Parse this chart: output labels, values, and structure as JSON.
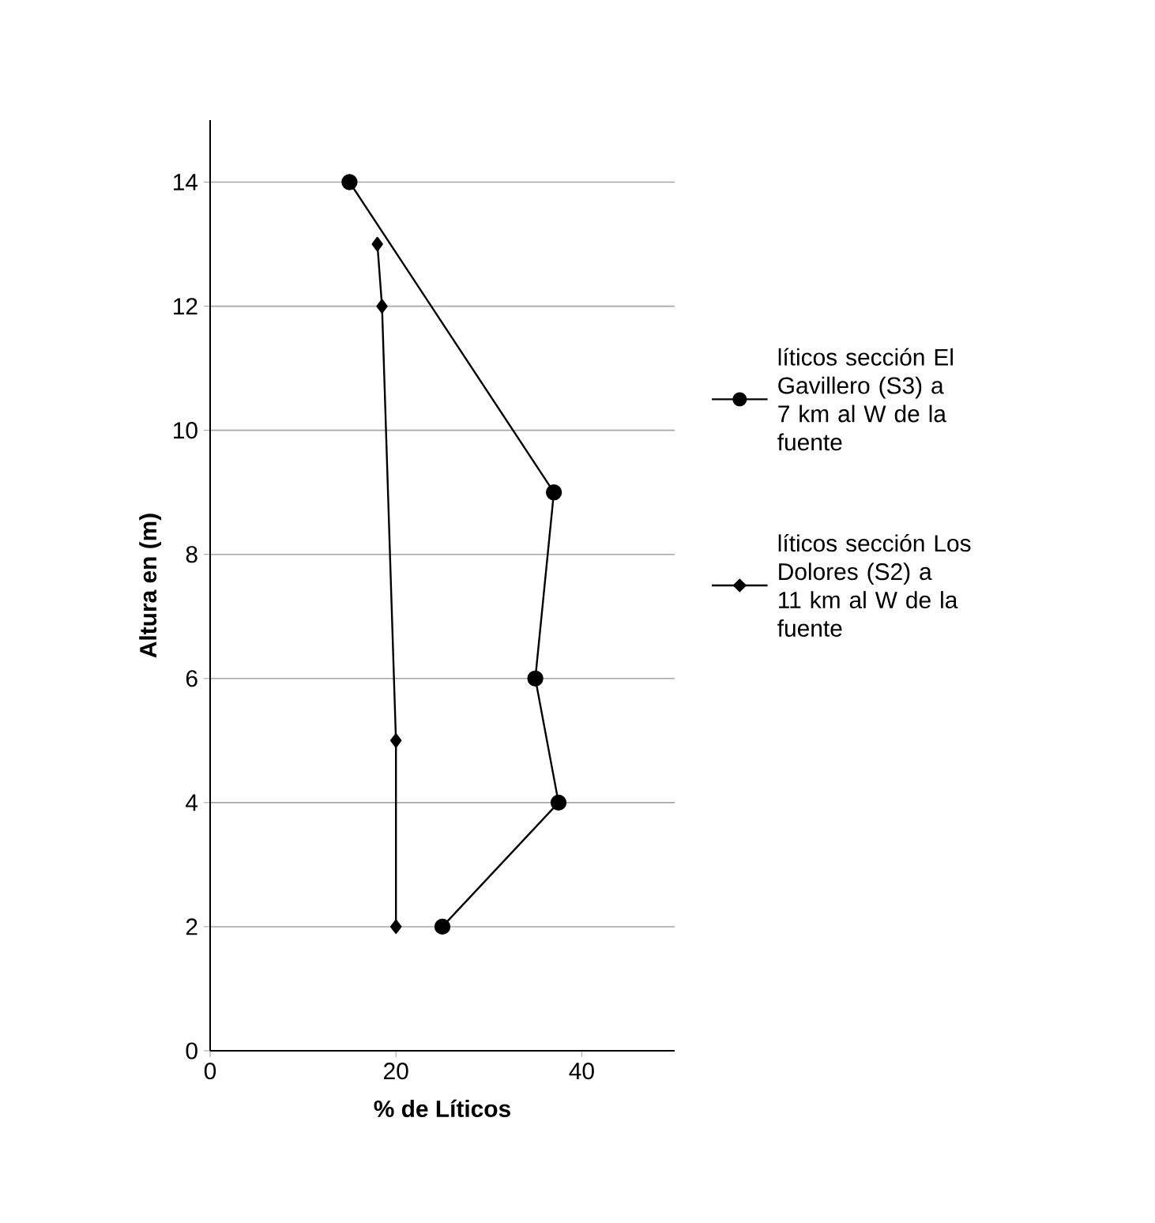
{
  "chart_data": {
    "type": "line",
    "xlabel": "% de Líticos",
    "ylabel": "Altura en (m)",
    "xlim": [
      0,
      50
    ],
    "xticks": [
      0,
      20,
      40
    ],
    "ylim": [
      0,
      15
    ],
    "yticks": [
      0,
      2,
      4,
      6,
      8,
      10,
      12,
      14
    ],
    "grid": "y",
    "legend": "right",
    "series": [
      {
        "name": "líticos sección El Gavillero (S3) a 7 km al W de la fuente",
        "color": "#000000",
        "marker": "circle",
        "x": [
          15,
          37,
          35,
          37.5,
          25
        ],
        "values": [
          14,
          9,
          6,
          4,
          2
        ]
      },
      {
        "name": "líticos sección Los Dolores (S2) a 11 km al W de la fuente",
        "color": "#000000",
        "marker": "diamond",
        "x": [
          18,
          18.5,
          20,
          20
        ],
        "values": [
          13,
          12,
          5,
          2
        ]
      }
    ]
  }
}
